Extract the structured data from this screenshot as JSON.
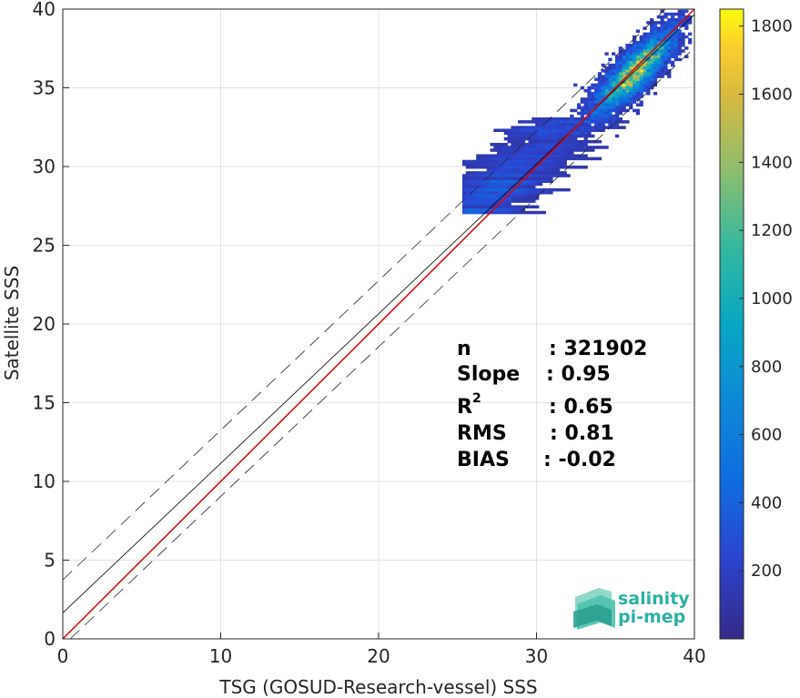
{
  "chart_data": {
    "type": "heatmap",
    "title": "",
    "xlabel": "TSG (GOSUD-Research-vessel) SSS",
    "ylabel": "Satellite SSS",
    "xlim": [
      0,
      40
    ],
    "ylim": [
      0,
      40
    ],
    "xticks": [
      "0",
      "10",
      "20",
      "30",
      "40"
    ],
    "yticks": [
      "0",
      "5",
      "10",
      "15",
      "20",
      "25",
      "30",
      "35",
      "40"
    ],
    "grid": true,
    "colorbar": {
      "range": [
        0,
        1850
      ],
      "ticks": [
        "200",
        "400",
        "600",
        "800",
        "1000",
        "1200",
        "1400",
        "1600",
        "1800"
      ],
      "colormap": "parula"
    },
    "density_core": {
      "x": 36.2,
      "y": 36.0
    },
    "lines": {
      "identity": {
        "slope": 1,
        "intercept": 0,
        "color": "#e00000"
      },
      "regression": {
        "slope": 0.95,
        "intercept": 1.65,
        "color": "#000000"
      },
      "upper_bound": {
        "slope": 0.95,
        "intercept": 3.75,
        "style": "dashed"
      },
      "lower_bound": {
        "slope": 0.95,
        "intercept": -0.45,
        "style": "dashed"
      }
    },
    "stats": [
      {
        "label": "n",
        "value": ": 321902"
      },
      {
        "label": "Slope",
        "value": ": 0.95"
      },
      {
        "label": "R",
        "sup": "2",
        "value": ": 0.65"
      },
      {
        "label": "RMS",
        "value": ": 0.81"
      },
      {
        "label": "BIAS",
        "value": ": -0.02"
      }
    ]
  },
  "logo": {
    "line1": "salinity",
    "line2": "pi-mep"
  }
}
